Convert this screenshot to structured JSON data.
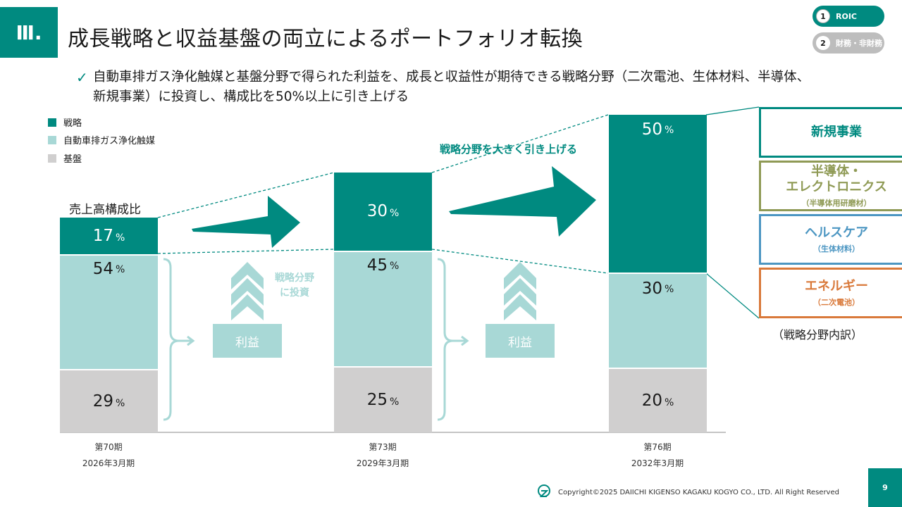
{
  "header": {
    "section": "Ⅲ.",
    "title": "成長戦略と収益基盤の両立によるポートフォリオ転換",
    "nav": [
      {
        "num": "1",
        "label": "ROIC"
      },
      {
        "num": "2",
        "label": "財務・非財務"
      }
    ]
  },
  "bullet": {
    "check": "✓",
    "text": "自動車排ガス浄化触媒と基盤分野で得られた利益を、成長と収益性が期待できる戦略分野（二次電池、生体材料、半導体、新規事業）に投資し、構成比を50%以上に引き上げる"
  },
  "annotations": {
    "invest": [
      "戦略分野",
      "に投資"
    ],
    "profit": "利益",
    "raise": "戦略分野を大きく引き上げる"
  },
  "chart_data": {
    "type": "bar",
    "stacked": true,
    "ylabel": "売上高構成比",
    "unit": "%",
    "categories": [
      {
        "period": "第70期",
        "date": "2026年3月期"
      },
      {
        "period": "第73期",
        "date": "2029年3月期"
      },
      {
        "period": "第76期",
        "date": "2032年3月期"
      }
    ],
    "series": [
      {
        "name": "戦略",
        "values": [
          17,
          30,
          50
        ],
        "color": "#008a80",
        "text_color": "#ffffff"
      },
      {
        "name": "自動車排ガス浄化触媒",
        "values": [
          54,
          45,
          30
        ],
        "color": "#a8d8d6",
        "text_color": "#1a1a1a"
      },
      {
        "name": "基盤",
        "values": [
          29,
          25,
          20
        ],
        "color": "#d0cfcf",
        "text_color": "#1a1a1a"
      }
    ],
    "legend_position": "top-left",
    "ylim": [
      0,
      100
    ]
  },
  "breakdown": {
    "items": [
      {
        "title": "新規事業",
        "sub": "",
        "color": "#008a80"
      },
      {
        "title": "半導体・\nエレクトロニクス",
        "sub": "（半導体用研磨材）",
        "color": "#8f9a55"
      },
      {
        "title": "ヘルスケア",
        "sub": "（生体材料）",
        "color": "#4c96c2"
      },
      {
        "title": "エネルギー",
        "sub": "（二次電池）",
        "color": "#d9793a"
      }
    ],
    "caption": "（戦略分野内訳）"
  },
  "footer": {
    "copyright": "Copyright©2025 DAIICHI KIGENSO KAGAKU KOGYO CO., LTD. All Right Reserved",
    "page": "9"
  }
}
